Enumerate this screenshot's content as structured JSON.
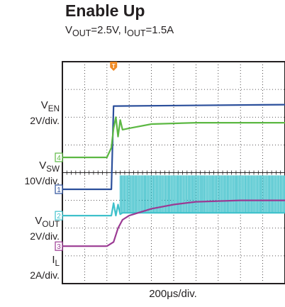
{
  "header": {
    "title": "Enable Up",
    "subtitle": {
      "v": "V",
      "v_sub": "OUT",
      "v_rest": "=2.5V, I",
      "i_sub": "OUT",
      "i_rest": "=1.5A"
    }
  },
  "chart_data": {
    "type": "line",
    "title": "Enable Up",
    "xlabel": "200μs/div.",
    "time_per_div_us": 200,
    "divisions": {
      "x": 10,
      "y": 8
    },
    "trigger_marker": "T",
    "grid": true,
    "series": [
      {
        "name_main": "V",
        "name_sub": "EN",
        "scale": "2V/div.",
        "channel": "1",
        "color": "#2b4f9b",
        "points": [
          [
            0,
            3.4
          ],
          [
            2.2,
            3.4
          ],
          [
            2.3,
            6.4
          ],
          [
            10,
            6.45
          ]
        ]
      },
      {
        "name_main": "",
        "name_sub": "",
        "scale": "",
        "channel": "2",
        "color": "#3fc1cb",
        "points": [
          [
            0,
            2.45
          ],
          [
            2.2,
            2.45
          ],
          [
            2.3,
            2.9
          ],
          [
            2.4,
            2.45
          ],
          [
            2.5,
            2.85
          ],
          [
            2.6,
            2.5
          ],
          [
            2.7,
            2.55
          ],
          [
            10,
            2.55
          ]
        ],
        "switching": {
          "start_div": 2.6,
          "end_div": 10,
          "low_div": 2.55,
          "high_div": 3.9
        }
      },
      {
        "name_main": "V",
        "name_sub": "SW",
        "scale": "10V/div.",
        "channel": "3",
        "color": "#9b3a93",
        "points": [
          [
            0,
            1.35
          ],
          [
            2.0,
            1.35
          ],
          [
            2.3,
            1.5
          ],
          [
            2.5,
            2.0
          ],
          [
            2.7,
            2.3
          ],
          [
            3.0,
            2.45
          ],
          [
            4.0,
            2.7
          ],
          [
            5.0,
            2.85
          ],
          [
            6.0,
            2.95
          ],
          [
            8.0,
            3.0
          ],
          [
            10,
            3.0
          ]
        ]
      },
      {
        "name_main": "V",
        "name_sub": "OUT",
        "scale": "2V/div.",
        "channel": "4",
        "color": "#5cb843",
        "points": [
          [
            0,
            4.55
          ],
          [
            2.0,
            4.55
          ],
          [
            2.2,
            4.9
          ],
          [
            2.3,
            5.6
          ],
          [
            2.4,
            6.0
          ],
          [
            2.5,
            5.3
          ],
          [
            2.6,
            5.9
          ],
          [
            2.7,
            5.55
          ],
          [
            3.0,
            5.6
          ],
          [
            4.0,
            5.75
          ],
          [
            6.0,
            5.8
          ],
          [
            8.0,
            5.8
          ],
          [
            10,
            5.8
          ]
        ]
      },
      {
        "name_main": "I",
        "name_sub": "L",
        "scale": "2A/div.",
        "channel": "",
        "color": "#5cb843",
        "points": []
      }
    ]
  }
}
